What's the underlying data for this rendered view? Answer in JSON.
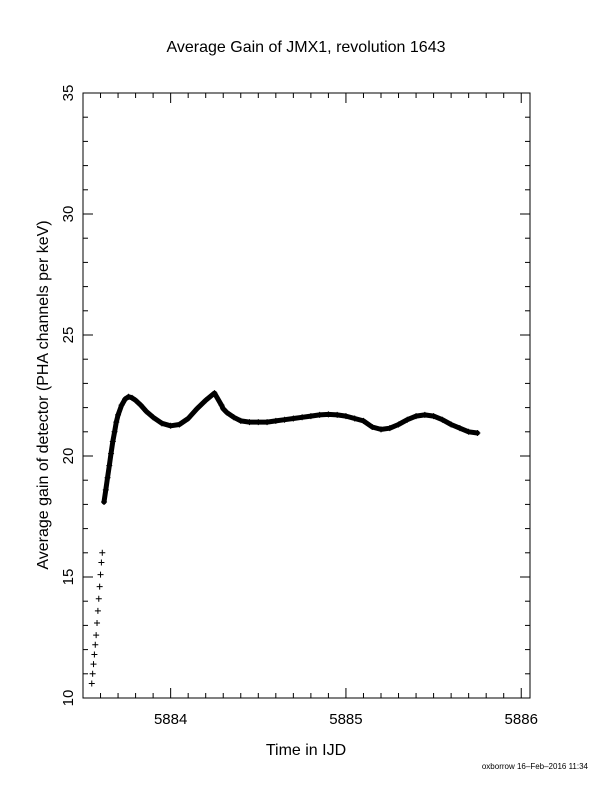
{
  "chart_data": {
    "type": "scatter",
    "title": "Average Gain of JMX1, revolution 1643",
    "xlabel": "Time in IJD",
    "ylabel": "Average gain of detector (PHA channels per keV)",
    "xlim": [
      5883.5,
      5886.05
    ],
    "ylim": [
      10,
      35
    ],
    "xticks": [
      5884,
      5885,
      5886
    ],
    "yticks": [
      10,
      15,
      20,
      25,
      30,
      35
    ],
    "marker": "plus",
    "grid": false,
    "x": [
      5883.55,
      5883.555,
      5883.56,
      5883.565,
      5883.57,
      5883.575,
      5883.58,
      5883.585,
      5883.59,
      5883.595,
      5883.6,
      5883.605,
      5883.61,
      5883.62,
      5883.63,
      5883.64,
      5883.65,
      5883.66,
      5883.67,
      5883.68,
      5883.69,
      5883.7,
      5883.72,
      5883.74,
      5883.76,
      5883.78,
      5883.8,
      5883.83,
      5883.86,
      5883.9,
      5883.95,
      5884.0,
      5884.05,
      5884.1,
      5884.15,
      5884.2,
      5884.25,
      5884.29,
      5884.3,
      5884.32,
      5884.36,
      5884.4,
      5884.45,
      5884.5,
      5884.55,
      5884.6,
      5884.65,
      5884.7,
      5884.75,
      5884.8,
      5884.85,
      5884.9,
      5884.95,
      5885.0,
      5885.05,
      5885.1,
      5885.15,
      5885.2,
      5885.25,
      5885.3,
      5885.35,
      5885.4,
      5885.45,
      5885.5,
      5885.55,
      5885.6,
      5885.65,
      5885.7,
      5885.75
    ],
    "y": [
      10.6,
      11.0,
      11.4,
      11.8,
      12.2,
      12.6,
      13.1,
      13.6,
      14.1,
      14.6,
      15.1,
      15.6,
      16.0,
      18.1,
      18.6,
      19.1,
      19.6,
      20.1,
      20.6,
      21.0,
      21.4,
      21.7,
      22.1,
      22.35,
      22.45,
      22.4,
      22.3,
      22.1,
      21.85,
      21.6,
      21.35,
      21.25,
      21.3,
      21.55,
      21.95,
      22.3,
      22.6,
      22.1,
      21.95,
      21.8,
      21.6,
      21.45,
      21.4,
      21.4,
      21.4,
      21.45,
      21.5,
      21.55,
      21.6,
      21.65,
      21.7,
      21.72,
      21.7,
      21.65,
      21.55,
      21.45,
      21.2,
      21.1,
      21.15,
      21.3,
      21.5,
      21.65,
      21.7,
      21.65,
      21.5,
      21.3,
      21.15,
      21.0,
      20.95
    ]
  },
  "footer_text": "oxborrow 16–Feb–2016 11:34"
}
